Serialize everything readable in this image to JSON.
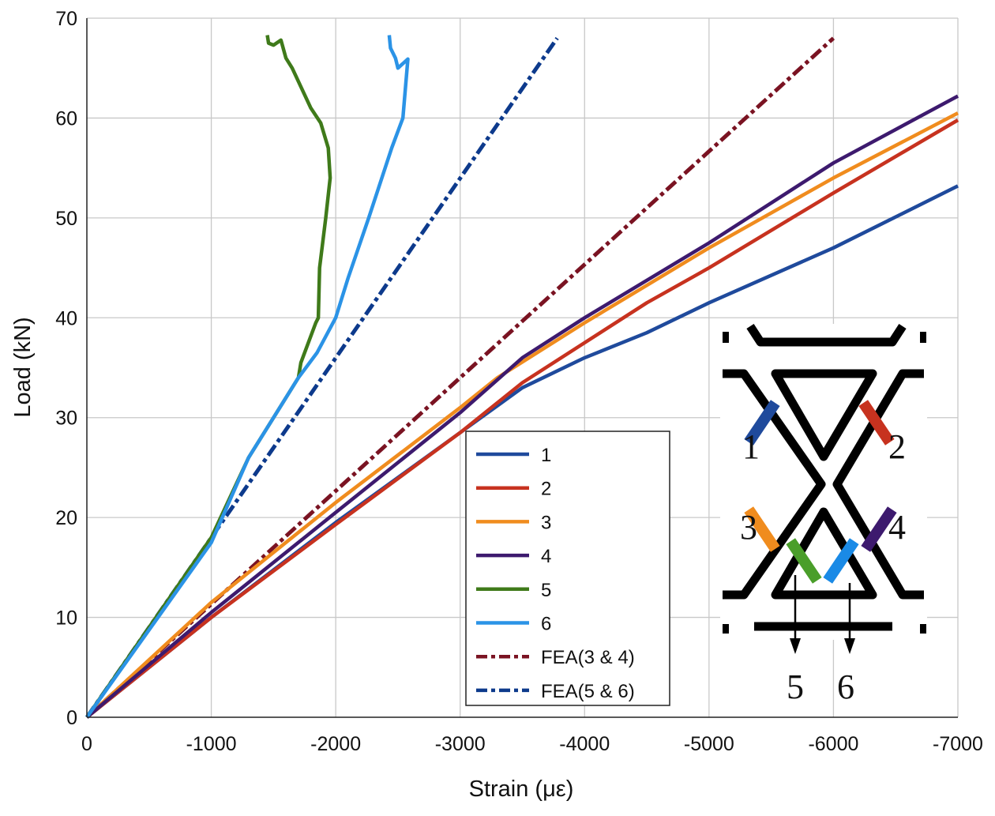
{
  "chart_data": {
    "type": "line",
    "title": "",
    "xlabel": "Strain (με)",
    "ylabel": "Load (kN)",
    "xlim": [
      0,
      -7000
    ],
    "ylim": [
      0,
      70
    ],
    "xticks": [
      0,
      -1000,
      -2000,
      -3000,
      -4000,
      -5000,
      -6000,
      -7000
    ],
    "xtick_labels": [
      "0",
      "-1000",
      "-2000",
      "-3000",
      "-4000",
      "-5000",
      "-6000",
      "-7000"
    ],
    "yticks": [
      0,
      10,
      20,
      30,
      40,
      50,
      60,
      70
    ],
    "ytick_labels": [
      "0",
      "10",
      "20",
      "30",
      "40",
      "50",
      "60",
      "70"
    ],
    "grid": true,
    "legend_position": "center-bottom",
    "series": [
      {
        "name": "1",
        "color": "#1f4a9c",
        "dash": "solid",
        "points": [
          [
            0,
            0
          ],
          [
            -1000,
            10
          ],
          [
            -2000,
            19.5
          ],
          [
            -3000,
            28.5
          ],
          [
            -3500,
            33
          ],
          [
            -4000,
            36
          ],
          [
            -4500,
            38.5
          ],
          [
            -5000,
            41.5
          ],
          [
            -6000,
            47
          ],
          [
            -7000,
            53.2
          ]
        ]
      },
      {
        "name": "2",
        "color": "#c7321f",
        "dash": "solid",
        "points": [
          [
            0,
            0
          ],
          [
            -1000,
            10
          ],
          [
            -2000,
            19.3
          ],
          [
            -3000,
            28.5
          ],
          [
            -3500,
            33.5
          ],
          [
            -4000,
            37.5
          ],
          [
            -4500,
            41.5
          ],
          [
            -5000,
            45
          ],
          [
            -6000,
            52.5
          ],
          [
            -7000,
            59.8
          ]
        ]
      },
      {
        "name": "3",
        "color": "#f08c1e",
        "dash": "solid",
        "points": [
          [
            0,
            0
          ],
          [
            -1000,
            11.5
          ],
          [
            -2000,
            21.5
          ],
          [
            -3000,
            31
          ],
          [
            -3300,
            34
          ],
          [
            -4000,
            39.5
          ],
          [
            -5000,
            47
          ],
          [
            -6000,
            54
          ],
          [
            -7000,
            60.5
          ]
        ]
      },
      {
        "name": "4",
        "color": "#3d1a6e",
        "dash": "solid",
        "points": [
          [
            0,
            0
          ],
          [
            -1000,
            10.5
          ],
          [
            -2000,
            20.5
          ],
          [
            -3000,
            30.5
          ],
          [
            -3500,
            36
          ],
          [
            -4000,
            40
          ],
          [
            -5000,
            47.5
          ],
          [
            -6000,
            55.5
          ],
          [
            -7000,
            62.2
          ]
        ]
      },
      {
        "name": "5",
        "color": "#3f7a1a",
        "dash": "solid",
        "points": [
          [
            0,
            0
          ],
          [
            -500,
            9
          ],
          [
            -1000,
            18
          ],
          [
            -1300,
            26
          ],
          [
            -1500,
            30
          ],
          [
            -1700,
            34
          ],
          [
            -1720,
            35.5
          ],
          [
            -1840,
            39.5
          ],
          [
            -1860,
            40
          ],
          [
            -1870,
            45
          ],
          [
            -1920,
            50
          ],
          [
            -1955,
            54
          ],
          [
            -1940,
            57
          ],
          [
            -1880,
            59.5
          ],
          [
            -1800,
            61
          ],
          [
            -1650,
            65
          ],
          [
            -1600,
            66
          ],
          [
            -1560,
            67.8
          ],
          [
            -1500,
            67.3
          ],
          [
            -1460,
            67.5
          ],
          [
            -1450,
            68.3
          ]
        ]
      },
      {
        "name": "6",
        "color": "#2b93e6",
        "dash": "solid",
        "points": [
          [
            0,
            0
          ],
          [
            -1000,
            17.5
          ],
          [
            -1300,
            26
          ],
          [
            -1500,
            30
          ],
          [
            -1700,
            34
          ],
          [
            -1850,
            36.5
          ],
          [
            -2000,
            40
          ],
          [
            -2100,
            44
          ],
          [
            -2265,
            50
          ],
          [
            -2450,
            57
          ],
          [
            -2540,
            60
          ],
          [
            -2580,
            65.9
          ],
          [
            -2500,
            65
          ],
          [
            -2480,
            66
          ],
          [
            -2440,
            67
          ],
          [
            -2430,
            68.3
          ]
        ]
      },
      {
        "name": "FEA(3 & 4)",
        "color": "#7a1322",
        "dash": "dashdot",
        "points": [
          [
            0,
            0
          ],
          [
            -6000,
            68
          ]
        ]
      },
      {
        "name": "FEA(5 & 6)",
        "color": "#0d3a8c",
        "dash": "dashdot",
        "points": [
          [
            0,
            0
          ],
          [
            -3780,
            68
          ]
        ]
      }
    ],
    "inset": {
      "gauge_labels": [
        "1",
        "2",
        "3",
        "4",
        "5",
        "6"
      ],
      "gauge_colors": [
        "#1f4a9c",
        "#c7321f",
        "#f08c1e",
        "#3d1a6e",
        "#4a9e2a",
        "#1a8ae6"
      ]
    }
  }
}
